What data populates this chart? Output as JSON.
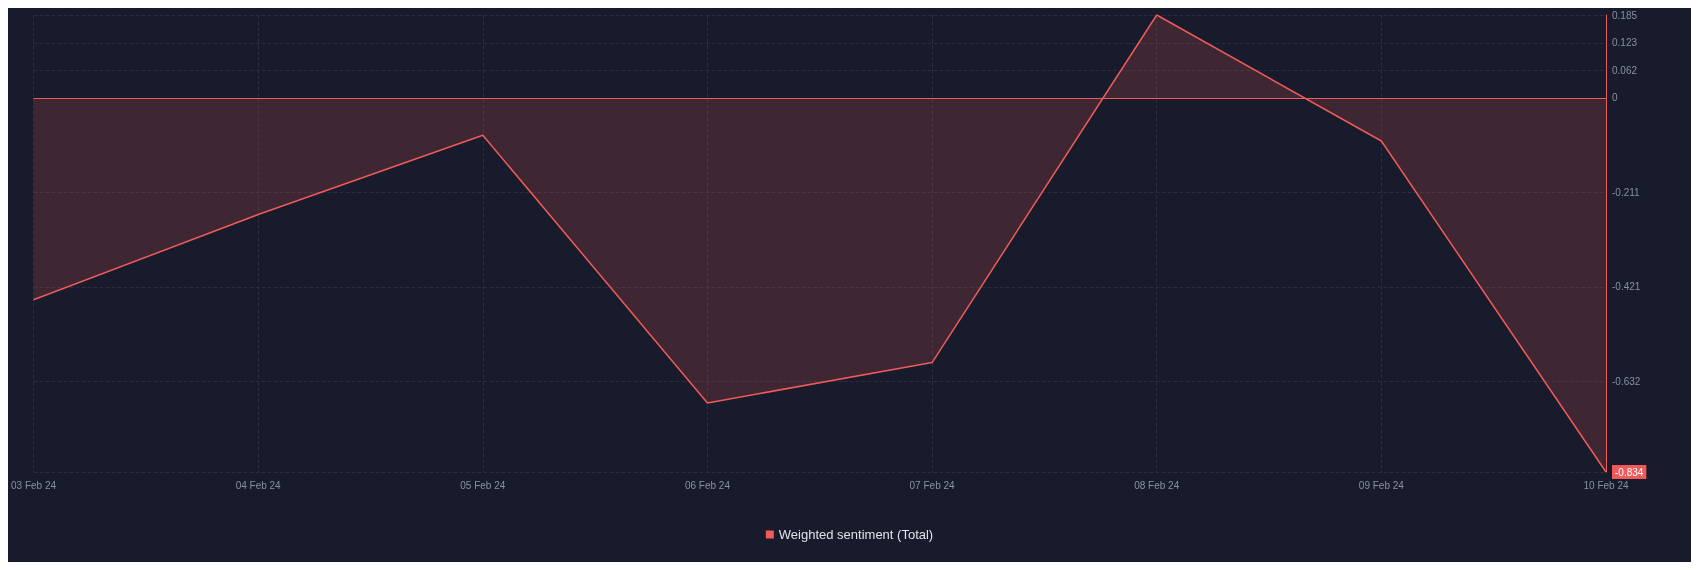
{
  "chart_data": {
    "type": "area",
    "categories": [
      "03 Feb 24",
      "04 Feb 24",
      "05 Feb 24",
      "06 Feb 24",
      "07 Feb 24",
      "08 Feb 24",
      "09 Feb 24",
      "10 Feb 24"
    ],
    "series": [
      {
        "name": "Weighted sentiment (Total)",
        "color": "#f05a5a",
        "values": [
          -0.45,
          -0.26,
          -0.083,
          -0.68,
          -0.59,
          0.185,
          -0.096,
          -0.834
        ]
      }
    ],
    "ylim": [
      -0.834,
      0.185
    ],
    "yticks": [
      -0.834,
      -0.632,
      -0.421,
      -0.211,
      0,
      0.062,
      0.123,
      0.185
    ],
    "ref_lines": [
      {
        "axis": "y",
        "value": 0,
        "label": null,
        "color": "#f05a5a"
      }
    ],
    "grid": true,
    "legend": "bottom",
    "marker": "none",
    "line_style": "solid"
  }
}
